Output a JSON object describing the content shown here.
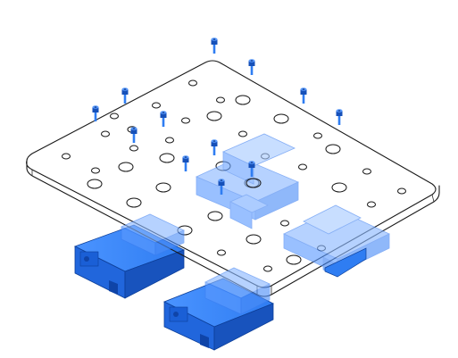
{
  "image": {
    "kind": "isometric CAD drawing",
    "colors": {
      "background": "#ffffff",
      "line": "#1a1a1a",
      "highlight": "#2f7df2",
      "highlight_dark": "#1657c9",
      "highlight_light": "#9cc3ff",
      "highlight_transparent": "#6fa7ff"
    }
  },
  "parts": {
    "plate": {
      "icon": "mounting-plate"
    },
    "holes": {
      "icon": "through-hole"
    },
    "screws": {
      "icon": "socket-head-cap-screw",
      "count": 13
    },
    "rail_blocks": {
      "icon": "linear-bearing-carriage",
      "count": 2
    },
    "bearing_housings": {
      "icon": "transparent-bearing-block",
      "count": 4
    }
  }
}
